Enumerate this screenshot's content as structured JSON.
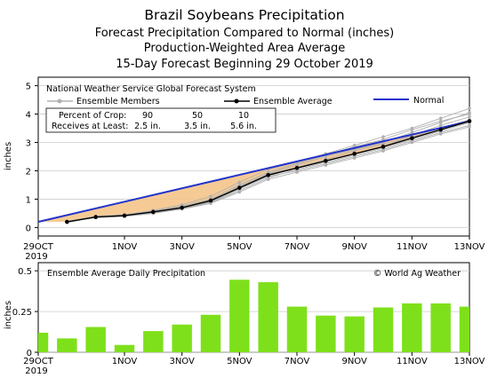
{
  "titles": {
    "line1": "Brazil Soybeans Precipitation",
    "line2": "Forecast Precipitation Compared to Normal (inches)",
    "line3": "Production-Weighted Area Average",
    "line4": "15-Day Forecast Beginning 29 October 2019"
  },
  "colors": {
    "normal": "#2233cc",
    "ensemble_average": "#000000",
    "ensemble_members": "#b0b0b0",
    "deficit_fill": "#f4c48a",
    "daily_bars": "#7ee01a"
  },
  "chart_data": [
    {
      "type": "line",
      "subtitle": "National Weather Service Global Forecast System",
      "ylabel": "inches",
      "ylim": [
        -0.3,
        5.3
      ],
      "yticks": [
        "0",
        "1",
        "2",
        "3",
        "4",
        "5"
      ],
      "x_tick_labels": [
        "29OCT",
        "1NOV",
        "3NOV",
        "5NOV",
        "7NOV",
        "9NOV",
        "11NOV",
        "13NOV"
      ],
      "x_tick_sublabel": "2019",
      "x_tick_positions": [
        0,
        3,
        5,
        7,
        9,
        11,
        13,
        15
      ],
      "xlim": [
        0,
        15
      ],
      "legend": {
        "members_label": "Ensemble Members",
        "average_label": "Ensemble Average",
        "normal_label": "Normal",
        "percent_header": "Percent of Crop:",
        "receives_header": "Receives at Least:",
        "percents": [
          "90",
          "50",
          "10"
        ],
        "amounts": [
          "2.5 in.",
          "3.5 in.",
          "5.6 in."
        ]
      },
      "normal": {
        "x": [
          0,
          15
        ],
        "y": [
          0.2,
          3.75
        ]
      },
      "ensemble_average": {
        "x": [
          1,
          2,
          3,
          4,
          5,
          6,
          7,
          8,
          9,
          10,
          11,
          12,
          13,
          14,
          15
        ],
        "y": [
          0.2,
          0.37,
          0.42,
          0.55,
          0.7,
          0.95,
          1.4,
          1.85,
          2.1,
          2.35,
          2.6,
          2.85,
          3.15,
          3.45,
          3.75
        ]
      },
      "ensemble_members": [
        {
          "y": [
            0.2,
            0.4,
            0.45,
            0.6,
            0.8,
            1.1,
            1.6,
            2.05,
            2.3,
            2.6,
            2.9,
            3.2,
            3.5,
            3.85,
            4.2
          ]
        },
        {
          "y": [
            0.2,
            0.35,
            0.4,
            0.5,
            0.65,
            0.85,
            1.25,
            1.7,
            1.95,
            2.2,
            2.45,
            2.7,
            3.0,
            3.3,
            3.55
          ]
        },
        {
          "y": [
            0.22,
            0.38,
            0.42,
            0.55,
            0.72,
            0.95,
            1.45,
            1.9,
            2.2,
            2.5,
            2.75,
            3.0,
            3.35,
            3.7,
            4.05
          ]
        },
        {
          "y": [
            0.18,
            0.36,
            0.41,
            0.52,
            0.68,
            0.9,
            1.35,
            1.8,
            2.0,
            2.25,
            2.5,
            2.75,
            3.05,
            3.35,
            3.6
          ]
        },
        {
          "y": [
            0.2,
            0.39,
            0.44,
            0.58,
            0.75,
            1.0,
            1.5,
            1.95,
            2.25,
            2.55,
            2.85,
            3.1,
            3.45,
            3.75,
            4.0
          ]
        },
        {
          "y": [
            0.2,
            0.35,
            0.39,
            0.5,
            0.66,
            0.88,
            1.3,
            1.75,
            2.05,
            2.3,
            2.55,
            2.8,
            3.1,
            3.4,
            3.7
          ]
        },
        {
          "y": [
            0.2,
            0.37,
            0.43,
            0.56,
            0.71,
            0.97,
            1.42,
            1.88,
            2.12,
            2.4,
            2.7,
            2.95,
            3.2,
            3.5,
            3.8
          ]
        },
        {
          "y": [
            0.2,
            0.36,
            0.4,
            0.53,
            0.69,
            0.92,
            1.38,
            1.82,
            2.1,
            2.35,
            2.6,
            2.85,
            3.25,
            3.6,
            3.9
          ]
        }
      ]
    },
    {
      "type": "bar",
      "title": "Ensemble Average Daily Precipitation",
      "attribution": "© World Ag Weather",
      "ylabel": "inches",
      "ylim": [
        0,
        0.55
      ],
      "yticks": [
        "0",
        "0.25",
        "0.5"
      ],
      "x_tick_labels": [
        "29OCT",
        "1NOV",
        "3NOV",
        "5NOV",
        "7NOV",
        "9NOV",
        "11NOV",
        "13NOV"
      ],
      "x_tick_sublabel": "2019",
      "categories": [
        "29OCT",
        "30OCT",
        "31OCT",
        "1NOV",
        "2NOV",
        "3NOV",
        "4NOV",
        "5NOV",
        "6NOV",
        "7NOV",
        "8NOV",
        "9NOV",
        "10NOV",
        "11NOV",
        "12NOV",
        "13NOV"
      ],
      "values": [
        0.12,
        0.085,
        0.155,
        0.045,
        0.13,
        0.17,
        0.23,
        0.445,
        0.43,
        0.28,
        0.225,
        0.22,
        0.275,
        0.3,
        0.3,
        0.28
      ]
    }
  ]
}
